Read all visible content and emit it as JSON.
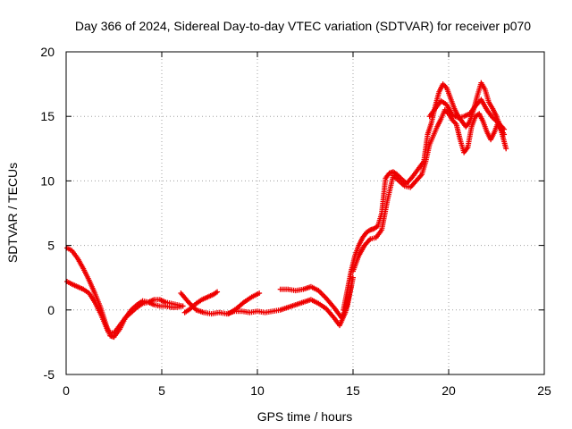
{
  "chart_data": {
    "type": "scatter",
    "title": "Day 366 of 2024, Sidereal Day-to-day VTEC variation (SDTVAR) for receiver p070",
    "xlabel": "GPS time / hours",
    "ylabel": "SDTVAR / TECUs",
    "xlim": [
      0,
      25
    ],
    "ylim": [
      -5,
      20
    ],
    "xticks": [
      0,
      5,
      10,
      15,
      20,
      25
    ],
    "yticks": [
      -5,
      0,
      5,
      10,
      15,
      20
    ],
    "grid": true,
    "marker": "+",
    "color": "#ee0000",
    "series": [
      {
        "name": "SDTVAR",
        "tracks": [
          {
            "x": [
              0.05,
              0.3,
              0.6,
              0.9,
              1.2,
              1.5,
              1.8,
              2.1,
              2.3,
              2.5,
              2.8,
              3.1,
              3.4,
              3.7,
              4.0,
              4.3,
              4.6,
              4.9,
              5.2,
              5.5,
              5.8,
              6.1
            ],
            "y": [
              4.8,
              4.6,
              4.0,
              3.2,
              2.3,
              1.3,
              0.2,
              -1.2,
              -2.0,
              -2.1,
              -1.5,
              -0.6,
              0.0,
              0.4,
              0.7,
              0.6,
              0.4,
              0.3,
              0.3,
              0.2,
              0.2,
              0.3
            ]
          },
          {
            "x": [
              0.05,
              0.3,
              0.6,
              0.9,
              1.2,
              1.5,
              1.8,
              2.0,
              2.2,
              2.5,
              2.8,
              3.1,
              3.4,
              3.7,
              4.0,
              4.3,
              4.6,
              4.9,
              5.2,
              5.5,
              5.8,
              6.1
            ],
            "y": [
              2.2,
              2.0,
              1.8,
              1.6,
              1.3,
              0.6,
              -0.3,
              -1.0,
              -1.7,
              -1.8,
              -1.2,
              -0.6,
              -0.2,
              0.2,
              0.5,
              0.6,
              0.8,
              0.8,
              0.6,
              0.5,
              0.4,
              0.3
            ]
          },
          {
            "x": [
              6.0,
              6.4,
              6.8,
              7.2,
              7.6,
              8.0,
              8.4,
              8.8,
              9.2,
              9.6,
              10.0,
              10.4,
              10.8,
              11.2,
              11.6,
              12.0,
              12.4,
              12.8,
              13.2,
              13.6,
              14.0,
              14.3,
              14.6,
              14.9
            ],
            "y": [
              1.3,
              0.6,
              0.0,
              -0.2,
              -0.3,
              -0.2,
              -0.3,
              -0.1,
              -0.1,
              -0.2,
              -0.1,
              -0.2,
              -0.1,
              0.0,
              0.2,
              0.4,
              0.6,
              0.8,
              0.5,
              0.1,
              -0.6,
              -1.2,
              -0.2,
              1.8
            ]
          },
          {
            "x": [
              6.2,
              6.5,
              6.8,
              7.1,
              7.4,
              7.7,
              7.9
            ],
            "y": [
              -0.2,
              0.1,
              0.5,
              0.8,
              1.0,
              1.2,
              1.4
            ]
          },
          {
            "x": [
              8.5,
              8.9,
              9.3,
              9.7,
              10.1
            ],
            "y": [
              -0.3,
              0.1,
              0.6,
              1.0,
              1.3
            ]
          },
          {
            "x": [
              11.2,
              11.6,
              12.0,
              12.4,
              12.8,
              13.2,
              13.6,
              14.0,
              14.4,
              14.7,
              15.0
            ],
            "y": [
              1.6,
              1.6,
              1.5,
              1.6,
              1.8,
              1.5,
              0.9,
              0.2,
              -0.6,
              0.3,
              2.5
            ]
          },
          {
            "x": [
              14.5,
              14.7,
              14.9,
              15.1,
              15.3,
              15.5,
              15.7,
              15.9,
              16.1,
              16.3,
              16.5,
              16.7,
              16.9,
              17.1,
              17.3,
              17.5,
              17.8,
              18.1,
              18.4,
              18.7,
              18.9,
              19.1,
              19.3,
              19.5,
              19.7,
              19.9,
              20.1,
              20.3,
              20.5,
              20.7,
              20.9,
              21.1,
              21.3,
              21.5,
              21.7,
              21.9,
              22.1,
              22.3,
              22.5,
              22.7,
              22.9
            ],
            "y": [
              0.0,
              1.5,
              3.0,
              4.2,
              5.0,
              5.6,
              6.0,
              6.2,
              6.3,
              6.5,
              7.5,
              10.2,
              10.6,
              10.7,
              10.5,
              10.2,
              9.8,
              10.3,
              10.9,
              11.5,
              13.6,
              14.5,
              15.8,
              16.9,
              17.5,
              17.2,
              16.4,
              15.6,
              15.0,
              14.6,
              14.2,
              14.6,
              15.5,
              16.6,
              17.6,
              17.1,
              16.1,
              15.6,
              15.0,
              14.1,
              13.6
            ]
          },
          {
            "x": [
              15.0,
              15.3,
              15.6,
              15.9,
              16.2,
              16.5,
              16.8,
              17.1,
              17.4,
              17.7,
              18.0,
              18.3,
              18.6,
              18.8,
              19.0,
              19.2,
              19.4,
              19.6,
              19.8,
              20.0,
              20.2,
              20.4,
              20.6,
              20.8,
              21.0,
              21.2,
              21.4,
              21.6,
              21.8,
              22.0,
              22.2,
              22.4,
              22.6,
              22.8,
              23.0
            ],
            "y": [
              3.0,
              4.2,
              5.0,
              5.5,
              5.6,
              6.2,
              8.5,
              10.4,
              10.0,
              9.6,
              9.5,
              10.0,
              10.5,
              11.5,
              12.8,
              13.5,
              14.2,
              14.8,
              15.5,
              15.2,
              14.7,
              14.4,
              13.2,
              12.2,
              12.6,
              14.2,
              15.0,
              15.2,
              14.6,
              13.8,
              13.2,
              13.8,
              14.6,
              13.6,
              12.5
            ]
          },
          {
            "x": [
              19.0,
              19.3,
              19.6,
              19.9,
              20.2,
              20.5,
              20.8,
              21.1,
              21.4,
              21.7,
              22.0,
              22.3,
              22.6,
              22.9
            ],
            "y": [
              15.0,
              15.6,
              16.2,
              15.9,
              15.1,
              14.9,
              15.0,
              15.2,
              15.8,
              16.3,
              15.5,
              14.9,
              14.5,
              14.0
            ]
          }
        ]
      }
    ]
  }
}
